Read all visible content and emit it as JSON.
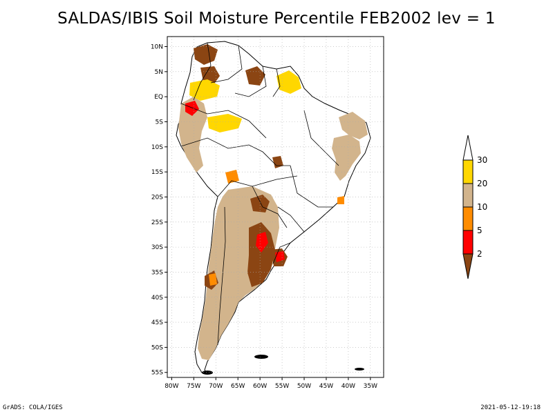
{
  "title": "SALDAS/IBIS Soil Moisture Percentile FEB2002 lev = 1",
  "footer_left": "GrADS: COLA/IGES",
  "footer_right": "2021-05-12-19:18",
  "map": {
    "lon_range": [
      -81,
      -32
    ],
    "lat_range": [
      -56,
      12
    ],
    "lat_ticks": [
      "10N",
      "5N",
      "EQ",
      "5S",
      "10S",
      "15S",
      "20S",
      "25S",
      "30S",
      "35S",
      "40S",
      "45S",
      "50S",
      "55S"
    ],
    "lon_ticks": [
      "80W",
      "75W",
      "70W",
      "65W",
      "60W",
      "55W",
      "50W",
      "45W",
      "40W",
      "35W"
    ],
    "gridlines": "dotted"
  },
  "colorbar": {
    "levels": [
      "2",
      "5",
      "10",
      "20",
      "30"
    ],
    "colors": [
      "#8b4513",
      "#ff0000",
      "#ff8c00",
      "#d2b48c",
      "#ffd700",
      "#ffffff"
    ]
  }
}
